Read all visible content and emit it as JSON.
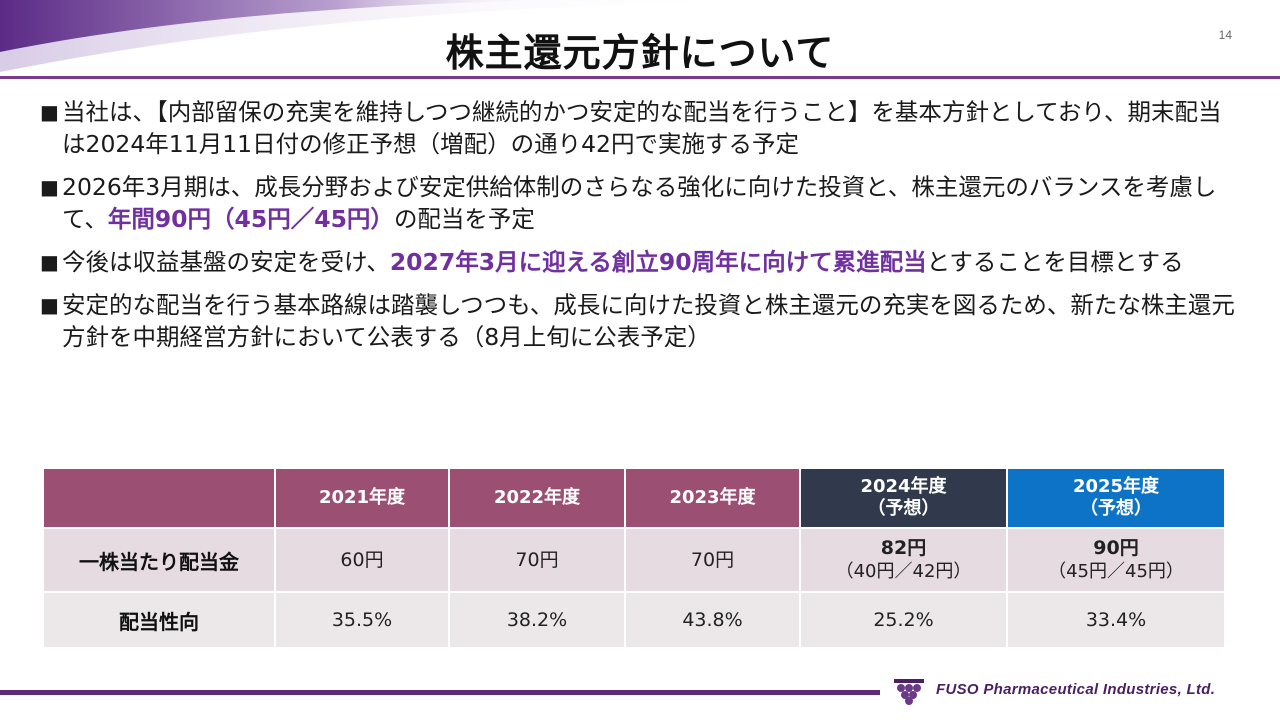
{
  "slide": {
    "title": "株主還元方針について",
    "page_number": "14"
  },
  "bullets": [
    {
      "marker": "■",
      "segments": [
        {
          "text": "当社は、【内部留保の充実を維持しつつ継続的かつ安定的な配当を行うこと】を基本方針としており、期末配当は2024年11月11日付の修正予想（増配）の通り42円で実施する予定",
          "highlight": false
        }
      ]
    },
    {
      "marker": "■",
      "segments": [
        {
          "text": "2026年3月期は、成長分野および安定供給体制のさらなる強化に向けた投資と、株主還元のバランスを考慮して、",
          "highlight": false
        },
        {
          "text": "年間90円（45円／45円）",
          "highlight": true
        },
        {
          "text": "の配当を予定",
          "highlight": false
        }
      ]
    },
    {
      "marker": "■",
      "segments": [
        {
          "text": "今後は収益基盤の安定を受け、",
          "highlight": false
        },
        {
          "text": "2027年3月に迎える創立90周年に向けて累進配当",
          "highlight": true
        },
        {
          "text": "とすることを目標とする",
          "highlight": false
        }
      ]
    },
    {
      "marker": "■",
      "segments": [
        {
          "text": "安定的な配当を行う基本路線は踏襲しつつも、成長に向けた投資と株主還元の充実を図るため、新たな株主還元方針を中期経営方針において公表する（8月上旬に公表予定）",
          "highlight": false
        }
      ]
    }
  ],
  "table": {
    "headers": [
      {
        "line1": "2021年度",
        "line2": ""
      },
      {
        "line1": "2022年度",
        "line2": ""
      },
      {
        "line1": "2023年度",
        "line2": ""
      },
      {
        "line1": "2024年度",
        "line2": "（予想）"
      },
      {
        "line1": "2025年度",
        "line2": "（予想）"
      }
    ],
    "rows": [
      {
        "label": "一株当たり配当金",
        "cells": [
          {
            "main": "60円",
            "sub": ""
          },
          {
            "main": "70円",
            "sub": ""
          },
          {
            "main": "70円",
            "sub": ""
          },
          {
            "main": "82円",
            "sub": "（40円／42円）"
          },
          {
            "main": "90円",
            "sub": "（45円／45円）"
          }
        ]
      },
      {
        "label": "配当性向",
        "cells": [
          {
            "main": "35.5%",
            "sub": ""
          },
          {
            "main": "38.2%",
            "sub": ""
          },
          {
            "main": "43.8%",
            "sub": ""
          },
          {
            "main": "25.2%",
            "sub": ""
          },
          {
            "main": "33.4%",
            "sub": ""
          }
        ]
      }
    ]
  },
  "footer": {
    "company": "FUSO Pharmaceutical Industries, Ltd.",
    "logo_icon": "fuso-grape-logo-icon"
  },
  "colors": {
    "accent_purple": "#7030a0",
    "header_mauve": "#9b4f72",
    "header_navy": "#303a4c",
    "header_blue": "#0d73c6",
    "rule_purple": "#7a3a8e"
  }
}
